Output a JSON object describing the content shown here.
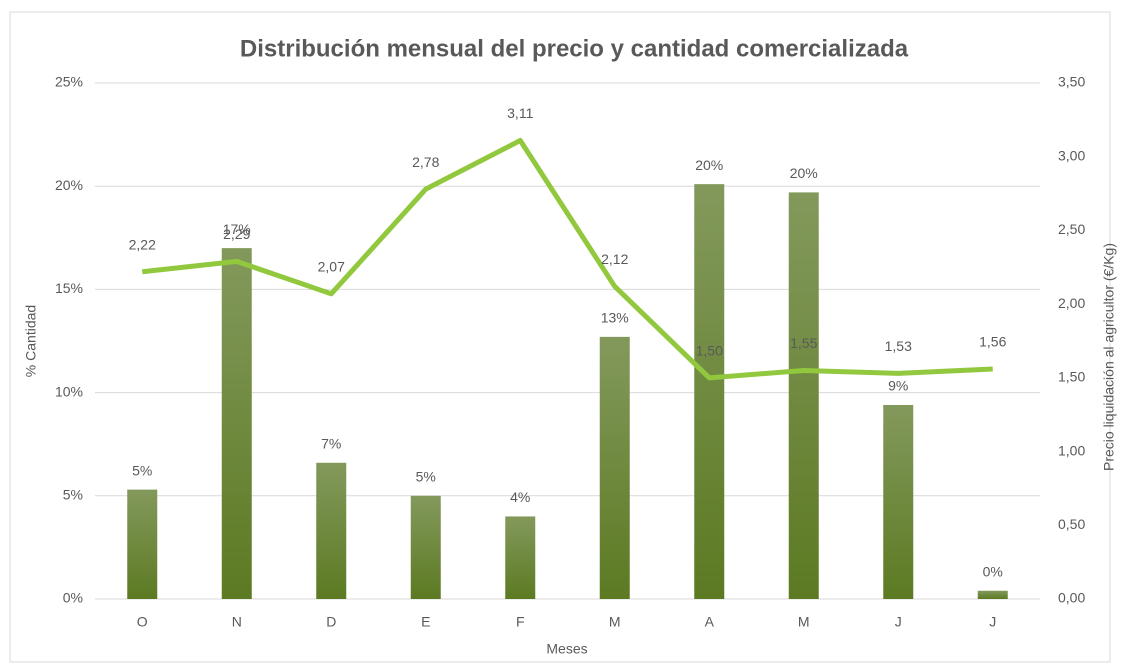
{
  "chart_data": {
    "type": "bar-line",
    "title": "Distribución  mensual del precio y cantidad comercializada",
    "x_label": "Meses",
    "y_label": "% Cantidad",
    "y2_label": "Precio liquidación al agricultor (€/Kg)",
    "categories": [
      "O",
      "N",
      "D",
      "E",
      "F",
      "M",
      "A",
      "M",
      "J",
      "J"
    ],
    "series": [
      {
        "name": "% Cantidad",
        "type": "bar",
        "color": "#6b8a35",
        "values": [
          5.3,
          17.0,
          6.6,
          5.0,
          4.0,
          12.7,
          20.1,
          19.7,
          9.4,
          0.4
        ],
        "value_labels": [
          "5%",
          "17%",
          "7%",
          "5%",
          "4%",
          "13%",
          "20%",
          "20%",
          "9%",
          "0%"
        ]
      },
      {
        "name": "Precio",
        "type": "line",
        "axis": "y2",
        "color": "#92c83e",
        "values": [
          2.22,
          2.29,
          2.07,
          2.78,
          3.11,
          2.12,
          1.5,
          1.55,
          1.53,
          1.56
        ],
        "value_labels": [
          "2,22",
          "2,29",
          "2,07",
          "2,78",
          "3,11",
          "2,12",
          "1,50",
          "1,55",
          "1,53",
          "1,56"
        ]
      }
    ],
    "ylim": [
      0,
      25
    ],
    "yticks": [
      {
        "value": 0,
        "label": "0%"
      },
      {
        "value": 5,
        "label": "5%"
      },
      {
        "value": 10,
        "label": "10%"
      },
      {
        "value": 15,
        "label": "15%"
      },
      {
        "value": 20,
        "label": "20%"
      },
      {
        "value": 25,
        "label": "25%"
      }
    ],
    "y2lim": [
      0,
      3.5
    ],
    "y2ticks": [
      {
        "value": 0,
        "label": "0,00"
      },
      {
        "value": 0.5,
        "label": "0,50"
      },
      {
        "value": 1,
        "label": "1,00"
      },
      {
        "value": 1.5,
        "label": "1,50"
      },
      {
        "value": 2,
        "label": "2,00"
      },
      {
        "value": 2.5,
        "label": "2,50"
      },
      {
        "value": 3,
        "label": "3,00"
      },
      {
        "value": 3.5,
        "label": "3,50"
      }
    ],
    "grid": true
  }
}
